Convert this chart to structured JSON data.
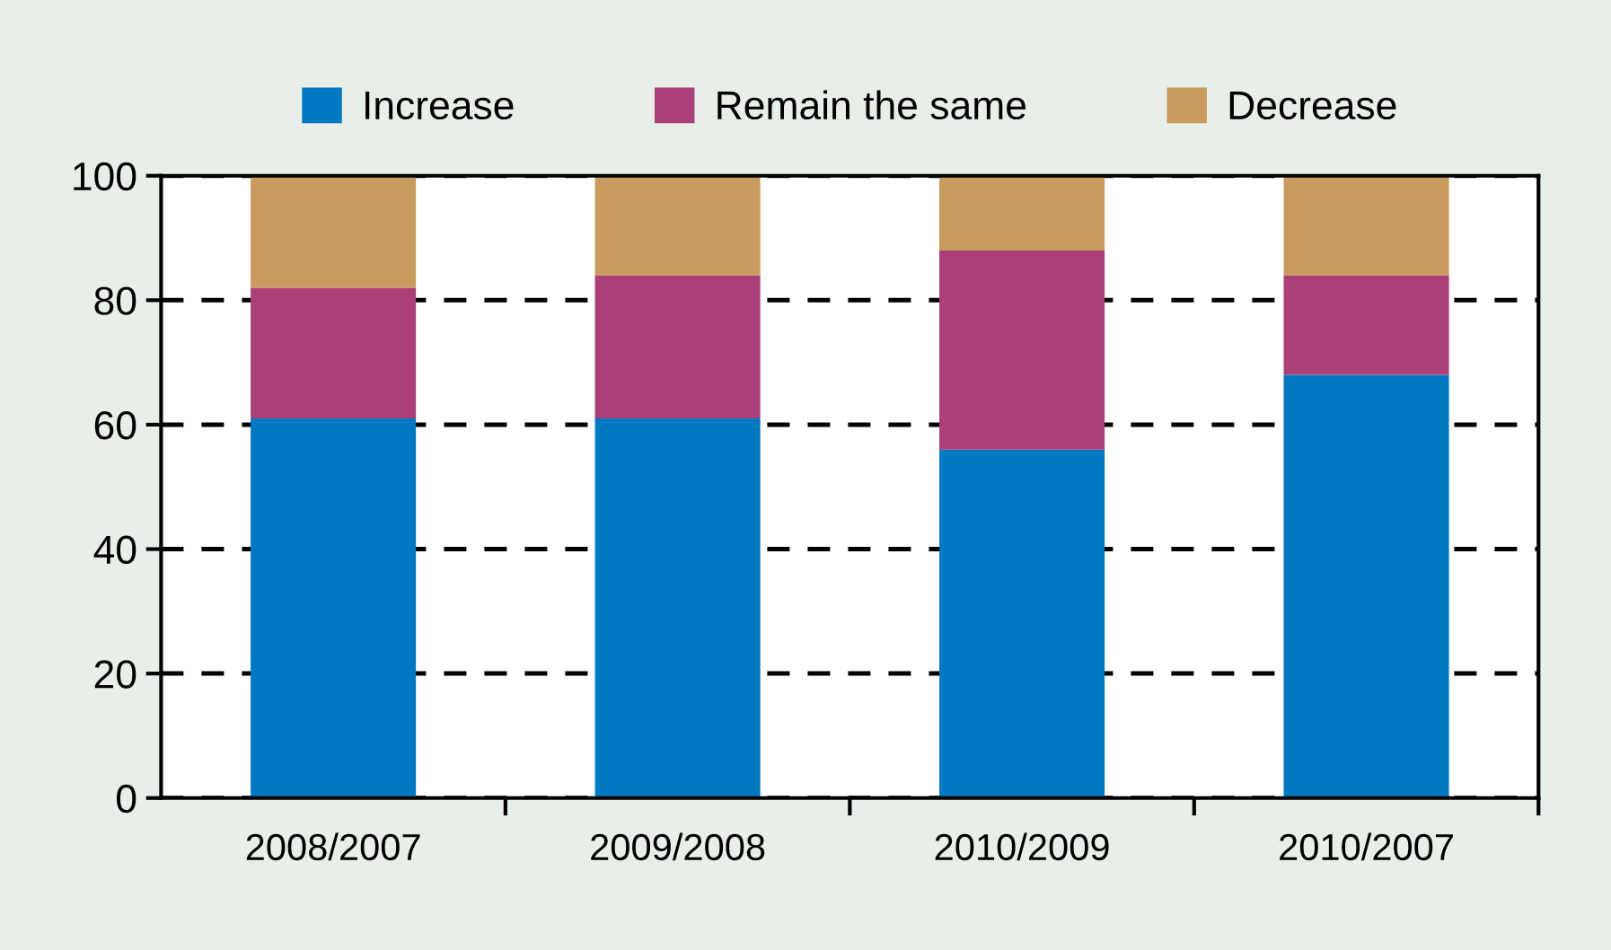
{
  "chart_data": {
    "type": "bar",
    "stacked": true,
    "categories": [
      "2008/2007",
      "2009/2008",
      "2010/2009",
      "2010/2007"
    ],
    "series": [
      {
        "name": "Increase",
        "color": "#0079c2",
        "values": [
          61,
          61,
          56,
          68
        ]
      },
      {
        "name": "Remain the same",
        "color": "#ab3f78",
        "values": [
          21,
          23,
          32,
          16
        ]
      },
      {
        "name": "Decrease",
        "color": "#c89b5e",
        "values": [
          18,
          16,
          12,
          16
        ]
      }
    ],
    "ylim": [
      0,
      100
    ],
    "yticks": [
      0,
      20,
      40,
      60,
      80,
      100
    ],
    "grid": "y",
    "legend": "top"
  }
}
